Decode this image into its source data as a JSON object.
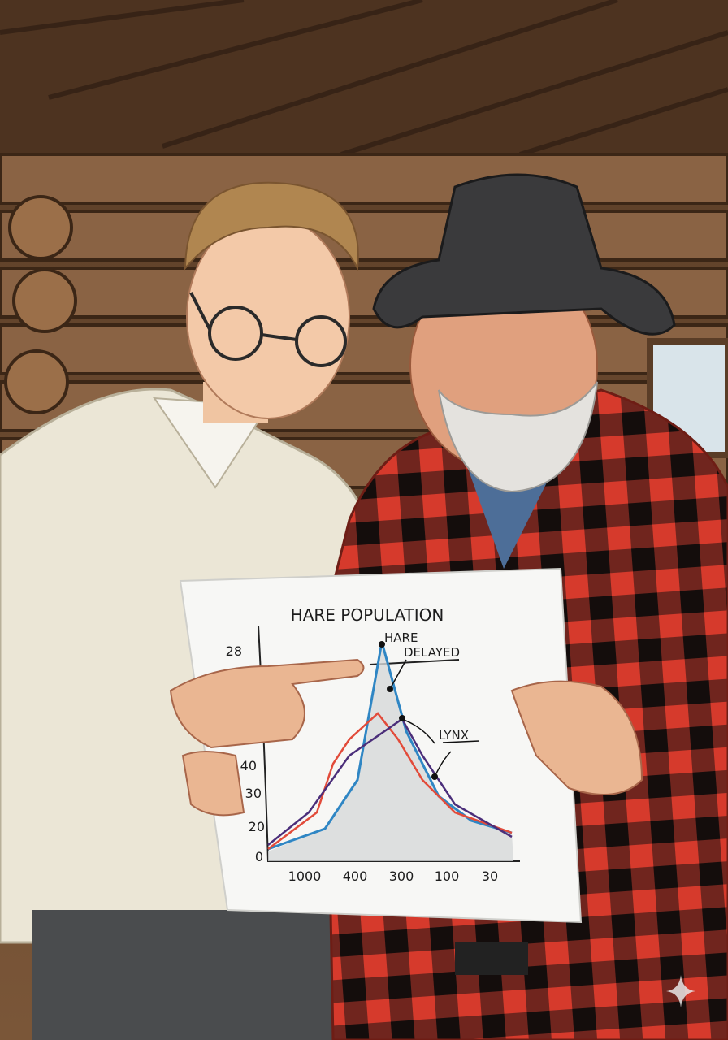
{
  "paper": {
    "title": "HARE POPULATION",
    "annotations": [
      "HARE",
      "DELAYED",
      "LYNX"
    ],
    "y_labels": [
      "28",
      "40",
      "30",
      "20",
      "0"
    ],
    "x_labels": [
      "1000",
      "400",
      "300",
      "100",
      "30"
    ]
  }
}
